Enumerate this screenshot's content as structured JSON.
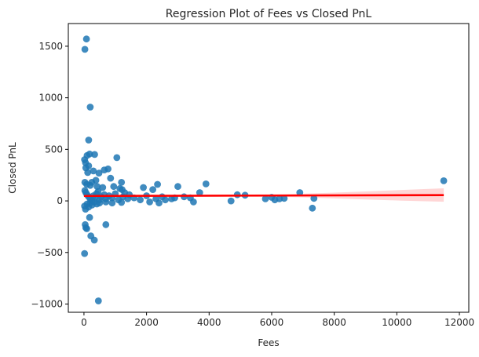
{
  "chart_data": {
    "type": "scatter",
    "title": "Regression Plot of Fees vs Closed PnL",
    "xlabel": "Fees",
    "ylabel": "Closed PnL",
    "xlim": [
      -500,
      12300
    ],
    "ylim": [
      -1080,
      1720
    ],
    "xticks": [
      0,
      2000,
      4000,
      6000,
      8000,
      10000,
      12000
    ],
    "xtick_labels": [
      "0",
      "2000",
      "4000",
      "6000",
      "8000",
      "10000",
      "12000"
    ],
    "yticks": [
      -1000,
      -500,
      0,
      500,
      1000,
      1500
    ],
    "ytick_labels": [
      "−1000",
      "−500",
      "0",
      "500",
      "1000",
      "1500"
    ],
    "grid": false,
    "legend": "none",
    "colors": {
      "points": "#1f77b4",
      "regression_line": "#ff0000",
      "confidence_band": "#ff9999"
    },
    "regression": {
      "x": [
        0,
        11500
      ],
      "y": [
        48,
        56
      ],
      "ci": {
        "x": [
          0,
          2000,
          4000,
          6000,
          7000,
          8000,
          9000,
          10000,
          11500
        ],
        "lower": [
          38,
          44,
          44,
          40,
          34,
          24,
          14,
          4,
          -8
        ],
        "upper": [
          58,
          56,
          58,
          62,
          70,
          80,
          92,
          104,
          122
        ]
      }
    },
    "points": [
      {
        "x": 30,
        "y": 1470
      },
      {
        "x": 80,
        "y": 1570
      },
      {
        "x": 200,
        "y": 910
      },
      {
        "x": 150,
        "y": 590
      },
      {
        "x": 100,
        "y": 440
      },
      {
        "x": 180,
        "y": 455
      },
      {
        "x": 340,
        "y": 450
      },
      {
        "x": 20,
        "y": 400
      },
      {
        "x": 50,
        "y": 370
      },
      {
        "x": 150,
        "y": 340
      },
      {
        "x": 60,
        "y": 320
      },
      {
        "x": 120,
        "y": 275
      },
      {
        "x": 300,
        "y": 290
      },
      {
        "x": 480,
        "y": 270
      },
      {
        "x": 650,
        "y": 300
      },
      {
        "x": 770,
        "y": 310
      },
      {
        "x": 1050,
        "y": 420
      },
      {
        "x": 850,
        "y": 220
      },
      {
        "x": 1200,
        "y": 180
      },
      {
        "x": 380,
        "y": 200
      },
      {
        "x": 250,
        "y": 180
      },
      {
        "x": 30,
        "y": 180
      },
      {
        "x": 90,
        "y": 160
      },
      {
        "x": 200,
        "y": 150
      },
      {
        "x": 420,
        "y": 140
      },
      {
        "x": 600,
        "y": 130
      },
      {
        "x": 950,
        "y": 140
      },
      {
        "x": 1150,
        "y": 120
      },
      {
        "x": 1220,
        "y": 110
      },
      {
        "x": 1300,
        "y": 80
      },
      {
        "x": 1450,
        "y": 60
      },
      {
        "x": 1900,
        "y": 130
      },
      {
        "x": 2200,
        "y": 110
      },
      {
        "x": 2350,
        "y": 160
      },
      {
        "x": 2500,
        "y": 40
      },
      {
        "x": 2800,
        "y": 20
      },
      {
        "x": 3000,
        "y": 140
      },
      {
        "x": 3400,
        "y": 30
      },
      {
        "x": 3700,
        "y": 80
      },
      {
        "x": 3900,
        "y": 165
      },
      {
        "x": 4700,
        "y": 0
      },
      {
        "x": 4900,
        "y": 60
      },
      {
        "x": 5150,
        "y": 55
      },
      {
        "x": 5800,
        "y": 20
      },
      {
        "x": 6000,
        "y": 35
      },
      {
        "x": 6100,
        "y": 10
      },
      {
        "x": 6250,
        "y": 20
      },
      {
        "x": 6400,
        "y": 25
      },
      {
        "x": 6900,
        "y": 80
      },
      {
        "x": 7350,
        "y": 25
      },
      {
        "x": 7300,
        "y": -70
      },
      {
        "x": 11500,
        "y": 195
      },
      {
        "x": 30,
        "y": 100
      },
      {
        "x": 60,
        "y": 80
      },
      {
        "x": 100,
        "y": 60
      },
      {
        "x": 150,
        "y": 40
      },
      {
        "x": 200,
        "y": 20
      },
      {
        "x": 250,
        "y": 0
      },
      {
        "x": 300,
        "y": 50
      },
      {
        "x": 350,
        "y": 30
      },
      {
        "x": 400,
        "y": 70
      },
      {
        "x": 450,
        "y": 90
      },
      {
        "x": 500,
        "y": 10
      },
      {
        "x": 550,
        "y": 40
      },
      {
        "x": 650,
        "y": 60
      },
      {
        "x": 700,
        "y": 20
      },
      {
        "x": 800,
        "y": 50
      },
      {
        "x": 900,
        "y": 30
      },
      {
        "x": 1000,
        "y": 70
      },
      {
        "x": 1100,
        "y": 10
      },
      {
        "x": 1250,
        "y": 40
      },
      {
        "x": 1400,
        "y": 20
      },
      {
        "x": 1600,
        "y": 30
      },
      {
        "x": 1800,
        "y": 10
      },
      {
        "x": 2000,
        "y": 50
      },
      {
        "x": 2100,
        "y": -10
      },
      {
        "x": 2300,
        "y": 20
      },
      {
        "x": 2400,
        "y": -20
      },
      {
        "x": 2600,
        "y": 10
      },
      {
        "x": 2900,
        "y": 30
      },
      {
        "x": 3200,
        "y": 40
      },
      {
        "x": 3500,
        "y": -10
      },
      {
        "x": 20,
        "y": -50
      },
      {
        "x": 50,
        "y": -80
      },
      {
        "x": 100,
        "y": -30
      },
      {
        "x": 150,
        "y": -60
      },
      {
        "x": 200,
        "y": -20
      },
      {
        "x": 260,
        "y": -40
      },
      {
        "x": 330,
        "y": -10
      },
      {
        "x": 410,
        "y": -30
      },
      {
        "x": 500,
        "y": -20
      },
      {
        "x": 700,
        "y": -10
      },
      {
        "x": 900,
        "y": -20
      },
      {
        "x": 1200,
        "y": -15
      },
      {
        "x": 40,
        "y": -230
      },
      {
        "x": 60,
        "y": -260
      },
      {
        "x": 90,
        "y": -270
      },
      {
        "x": 180,
        "y": -160
      },
      {
        "x": 700,
        "y": -230
      },
      {
        "x": 220,
        "y": -340
      },
      {
        "x": 330,
        "y": -380
      },
      {
        "x": 20,
        "y": -510
      },
      {
        "x": 460,
        "y": -970
      }
    ]
  }
}
